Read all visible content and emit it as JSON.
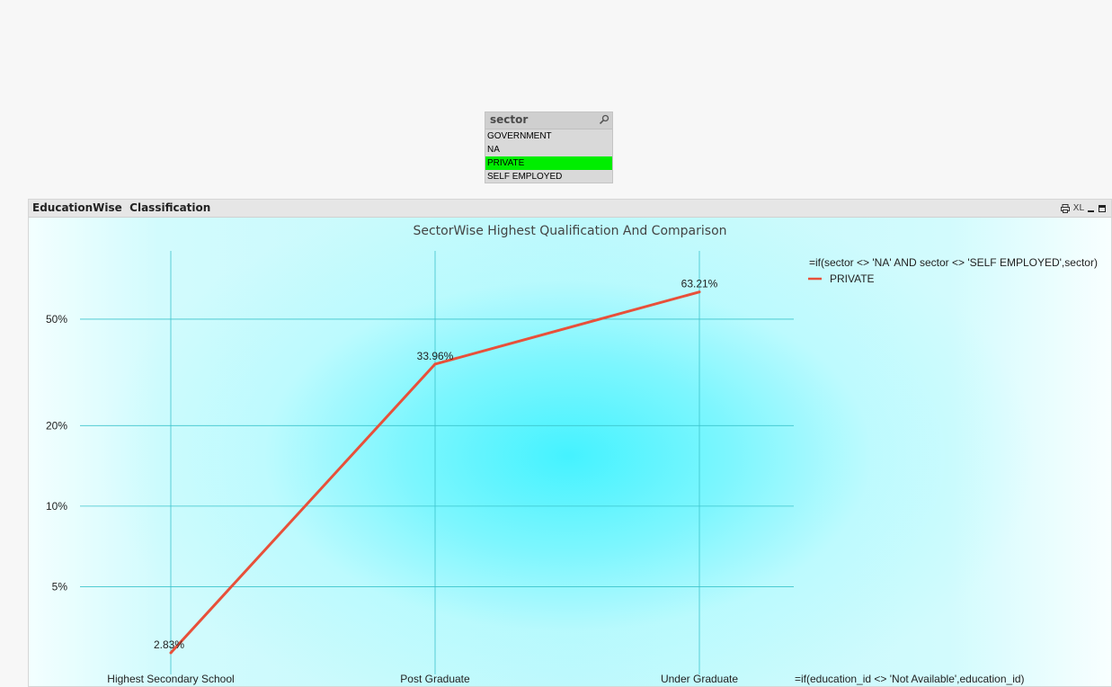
{
  "listbox": {
    "title": "sector",
    "search_icon": "magnifier-icon",
    "items": [
      {
        "label": "GOVERNMENT",
        "selected": false
      },
      {
        "label": "NA",
        "selected": false
      },
      {
        "label": "PRIVATE",
        "selected": true
      },
      {
        "label": "SELF EMPLOYED",
        "selected": false
      }
    ],
    "selected_color": "#00ee00"
  },
  "chart_object": {
    "caption": "EducationWise  Classification",
    "icons": [
      "print-icon",
      "xl-icon",
      "minimize-icon",
      "maximize-icon"
    ],
    "xl_label": "XL"
  },
  "chart_data": {
    "type": "line",
    "title": "SectorWise Highest Qualification And Comparison",
    "categories": [
      "Highest Secondary School",
      "Post Graduate",
      "Under Graduate"
    ],
    "series": [
      {
        "name": "PRIVATE",
        "values": [
          2.83,
          33.96,
          63.21
        ],
        "labels": [
          "2.83%",
          "33.96%",
          "63.21%"
        ],
        "color": "#e8503a"
      }
    ],
    "y_scale": "log",
    "y_ticks": [
      5,
      10,
      20,
      50
    ],
    "y_tick_labels": [
      "5%",
      "10%",
      "20%",
      "50%"
    ],
    "ylim": [
      2.5,
      90
    ],
    "grid": true,
    "grid_color": "#3cc4cc",
    "legend_title": "=if(sector <> 'NA' AND sector <> 'SELF EMPLOYED',sector)",
    "legend_position": "top-right",
    "xlabel": "=if(education_id  <>  'Not Available',education_id)"
  }
}
